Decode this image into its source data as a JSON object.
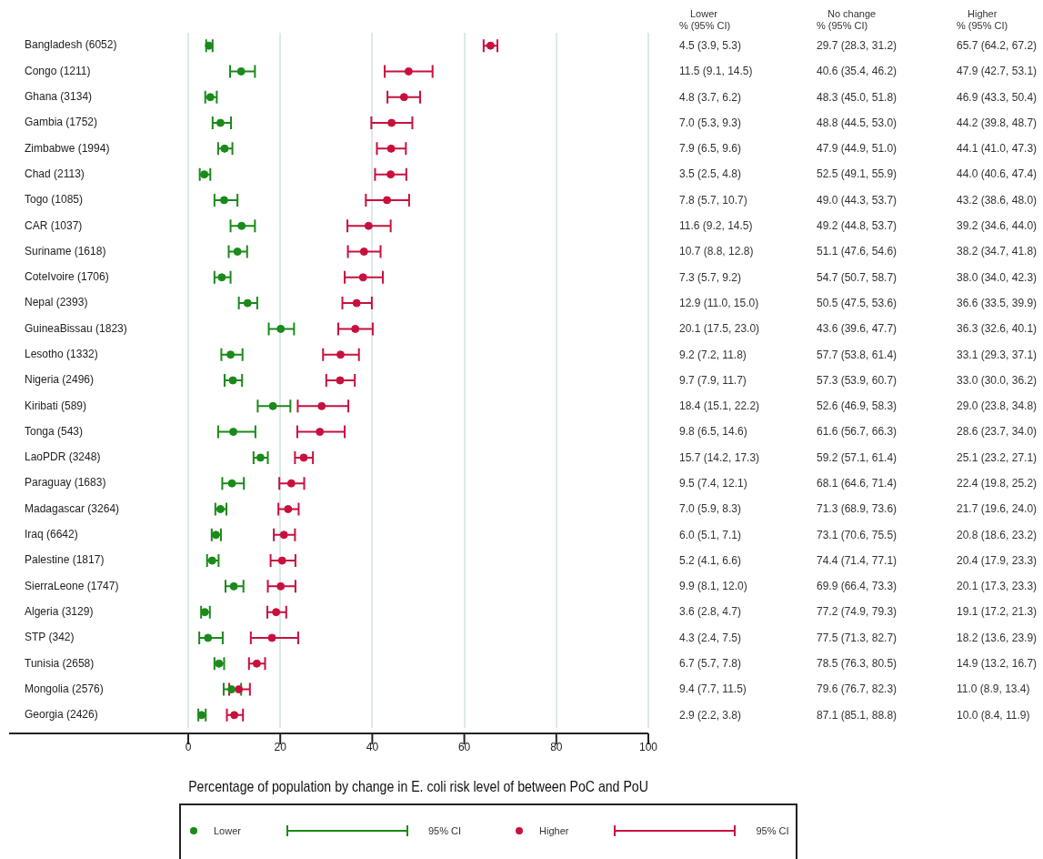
{
  "chart_data": [
    {
      "type": "scatter",
      "orientation": "horizontal",
      "xlabel": "Percentage of population by change in E. coli risk level of between PoC and PoU",
      "categories": [
        "Bangladesh (6052)",
        "Congo (1211)",
        "Ghana (3134)",
        "Gambia (1752)",
        "Zimbabwe (1994)",
        "Chad (2113)",
        "Togo (1085)",
        "CAR (1037)",
        "Suriname (1618)",
        "CoteIvoire (1706)",
        "Nepal (2393)",
        "GuineaBissau (1823)",
        "Lesotho (1332)",
        "Nigeria (2496)",
        "Kiribati (589)",
        "Tonga (543)",
        "LaoPDR (3248)",
        "Paraguay (1683)",
        "Madagascar (3264)",
        "Iraq (6642)",
        "Palestine (1817)",
        "SierraLeone (1747)",
        "Algeria (3129)",
        "STP (342)",
        "Tunisia (2658)",
        "Mongolia (2576)",
        "Georgia (2426)"
      ],
      "xlim": [
        0,
        100
      ],
      "xticks": [
        0,
        20,
        40,
        60,
        80,
        100
      ],
      "grid": "x",
      "legend": "bottom",
      "marker": "circle",
      "annotations": [
        "95% CI"
      ],
      "series": [
        {
          "name": "Lower",
          "color": "#1a8a1a",
          "values": [
            4.5,
            11.5,
            4.8,
            7.0,
            7.9,
            3.5,
            7.8,
            11.6,
            10.7,
            7.3,
            12.9,
            20.1,
            9.2,
            9.7,
            18.4,
            9.8,
            15.7,
            9.5,
            7.0,
            6.0,
            5.2,
            9.9,
            3.6,
            4.3,
            6.7,
            9.4,
            2.9
          ],
          "errors": [
            [
              3.9,
              5.3
            ],
            [
              9.1,
              14.5
            ],
            [
              3.7,
              6.2
            ],
            [
              5.3,
              9.3
            ],
            [
              6.5,
              9.6
            ],
            [
              2.5,
              4.8
            ],
            [
              5.7,
              10.7
            ],
            [
              9.2,
              14.5
            ],
            [
              8.8,
              12.8
            ],
            [
              5.7,
              9.2
            ],
            [
              11.0,
              15.0
            ],
            [
              17.5,
              23.0
            ],
            [
              7.2,
              11.8
            ],
            [
              7.9,
              11.7
            ],
            [
              15.1,
              22.2
            ],
            [
              6.5,
              14.6
            ],
            [
              14.2,
              17.3
            ],
            [
              7.4,
              12.1
            ],
            [
              5.9,
              8.3
            ],
            [
              5.1,
              7.1
            ],
            [
              4.1,
              6.6
            ],
            [
              8.1,
              12.0
            ],
            [
              2.8,
              4.7
            ],
            [
              2.4,
              7.5
            ],
            [
              5.7,
              7.8
            ],
            [
              7.7,
              11.5
            ],
            [
              2.2,
              3.8
            ]
          ]
        },
        {
          "name": "Higher",
          "color": "#c8103e",
          "values": [
            65.7,
            47.9,
            46.9,
            44.2,
            44.1,
            44.0,
            43.2,
            39.2,
            38.2,
            38.0,
            36.6,
            36.3,
            33.1,
            33.0,
            29.0,
            28.6,
            25.1,
            22.4,
            21.7,
            20.8,
            20.4,
            20.1,
            19.1,
            18.2,
            14.9,
            11.0,
            10.0
          ],
          "errors": [
            [
              64.2,
              67.2
            ],
            [
              42.7,
              53.1
            ],
            [
              43.3,
              50.4
            ],
            [
              39.8,
              48.7
            ],
            [
              41.0,
              47.3
            ],
            [
              40.6,
              47.4
            ],
            [
              38.6,
              48.0
            ],
            [
              34.6,
              44.0
            ],
            [
              34.7,
              41.8
            ],
            [
              34.0,
              42.3
            ],
            [
              33.5,
              39.9
            ],
            [
              32.6,
              40.1
            ],
            [
              29.3,
              37.1
            ],
            [
              30.0,
              36.2
            ],
            [
              23.8,
              34.8
            ],
            [
              23.7,
              34.0
            ],
            [
              23.2,
              27.1
            ],
            [
              19.8,
              25.2
            ],
            [
              19.6,
              24.0
            ],
            [
              18.6,
              23.2
            ],
            [
              17.9,
              23.3
            ],
            [
              17.3,
              23.3
            ],
            [
              17.2,
              21.3
            ],
            [
              13.6,
              23.9
            ],
            [
              13.2,
              16.7
            ],
            [
              8.9,
              13.4
            ],
            [
              8.4,
              11.9
            ]
          ]
        }
      ]
    },
    {
      "type": "other",
      "categories": [
        "Lower",
        "No change",
        "Higher"
      ],
      "annotations": [
        "% (95% CI)",
        "4.5 (3.9, 5.3)",
        "29.7 (28.3, 31.2)",
        "65.7 (64.2, 67.2)",
        "11.5 (9.1, 14.5)",
        "40.6 (35.4, 46.2)",
        "47.9 (42.7, 53.1)",
        "4.8 (3.7, 6.2)",
        "48.3 (45.0, 51.8)",
        "46.9 (43.3, 50.4)",
        "7.0 (5.3, 9.3)",
        "48.8 (44.5, 53.0)",
        "44.2 (39.8, 48.7)",
        "7.9 (6.5, 9.6)",
        "47.9 (44.9, 51.0)",
        "44.1 (41.0, 47.3)",
        "3.5 (2.5, 4.8)",
        "52.5 (49.1, 55.9)",
        "44.0 (40.6, 47.4)",
        "7.8 (5.7, 10.7)",
        "49.0 (44.3, 53.7)",
        "43.2 (38.6, 48.0)",
        "11.6 (9.2, 14.5)",
        "49.2 (44.8, 53.7)",
        "39.2 (34.6, 44.0)",
        "10.7 (8.8, 12.8)",
        "51.1 (47.6, 54.6)",
        "38.2 (34.7, 41.8)",
        "7.3 (5.7, 9.2)",
        "54.7 (50.7, 58.7)",
        "38.0 (34.0, 42.3)",
        "12.9 (11.0, 15.0)",
        "50.5 (47.5, 53.6)",
        "36.6 (33.5, 39.9)",
        "20.1 (17.5, 23.0)",
        "43.6 (39.6, 47.7)",
        "36.3 (32.6, 40.1)",
        "9.2 (7.2, 11.8)",
        "57.7 (53.8, 61.4)",
        "33.1 (29.3, 37.1)",
        "9.7 (7.9, 11.7)",
        "57.3 (53.9, 60.7)",
        "33.0 (30.0, 36.2)",
        "18.4 (15.1, 22.2)",
        "52.6 (46.9, 58.3)",
        "29.0 (23.8, 34.8)",
        "9.8 (6.5, 14.6)",
        "61.6 (56.7, 66.3)",
        "28.6 (23.7, 34.0)",
        "15.7 (14.2, 17.3)",
        "59.2 (57.1, 61.4)",
        "25.1 (23.2, 27.1)",
        "9.5 (7.4, 12.1)",
        "68.1 (64.6, 71.4)",
        "22.4 (19.8, 25.2)",
        "7.0 (5.9, 8.3)",
        "71.3 (68.9, 73.6)",
        "21.7 (19.6, 24.0)",
        "6.0 (5.1, 7.1)",
        "73.1 (70.6, 75.5)",
        "20.8 (18.6, 23.2)",
        "5.2 (4.1, 6.6)",
        "74.4 (71.4, 77.1)",
        "20.4 (17.9, 23.3)",
        "9.9 (8.1, 12.0)",
        "69.9 (66.4, 73.3)",
        "20.1 (17.3, 23.3)",
        "3.6 (2.8, 4.7)",
        "77.2 (74.9, 79.3)",
        "19.1 (17.2, 21.3)",
        "4.3 (2.4, 7.5)",
        "77.5 (71.3, 82.7)",
        "18.2 (13.6, 23.9)",
        "6.7 (5.7, 7.8)",
        "78.5 (76.3, 80.5)",
        "14.9 (13.2, 16.7)",
        "9.4 (7.7, 11.5)",
        "79.6 (76.7, 82.3)",
        "11.0 (8.9, 13.4)",
        "2.9 (2.2, 3.8)",
        "87.1 (85.1, 88.8)",
        "10.0 (8.4, 11.9)"
      ]
    }
  ]
}
